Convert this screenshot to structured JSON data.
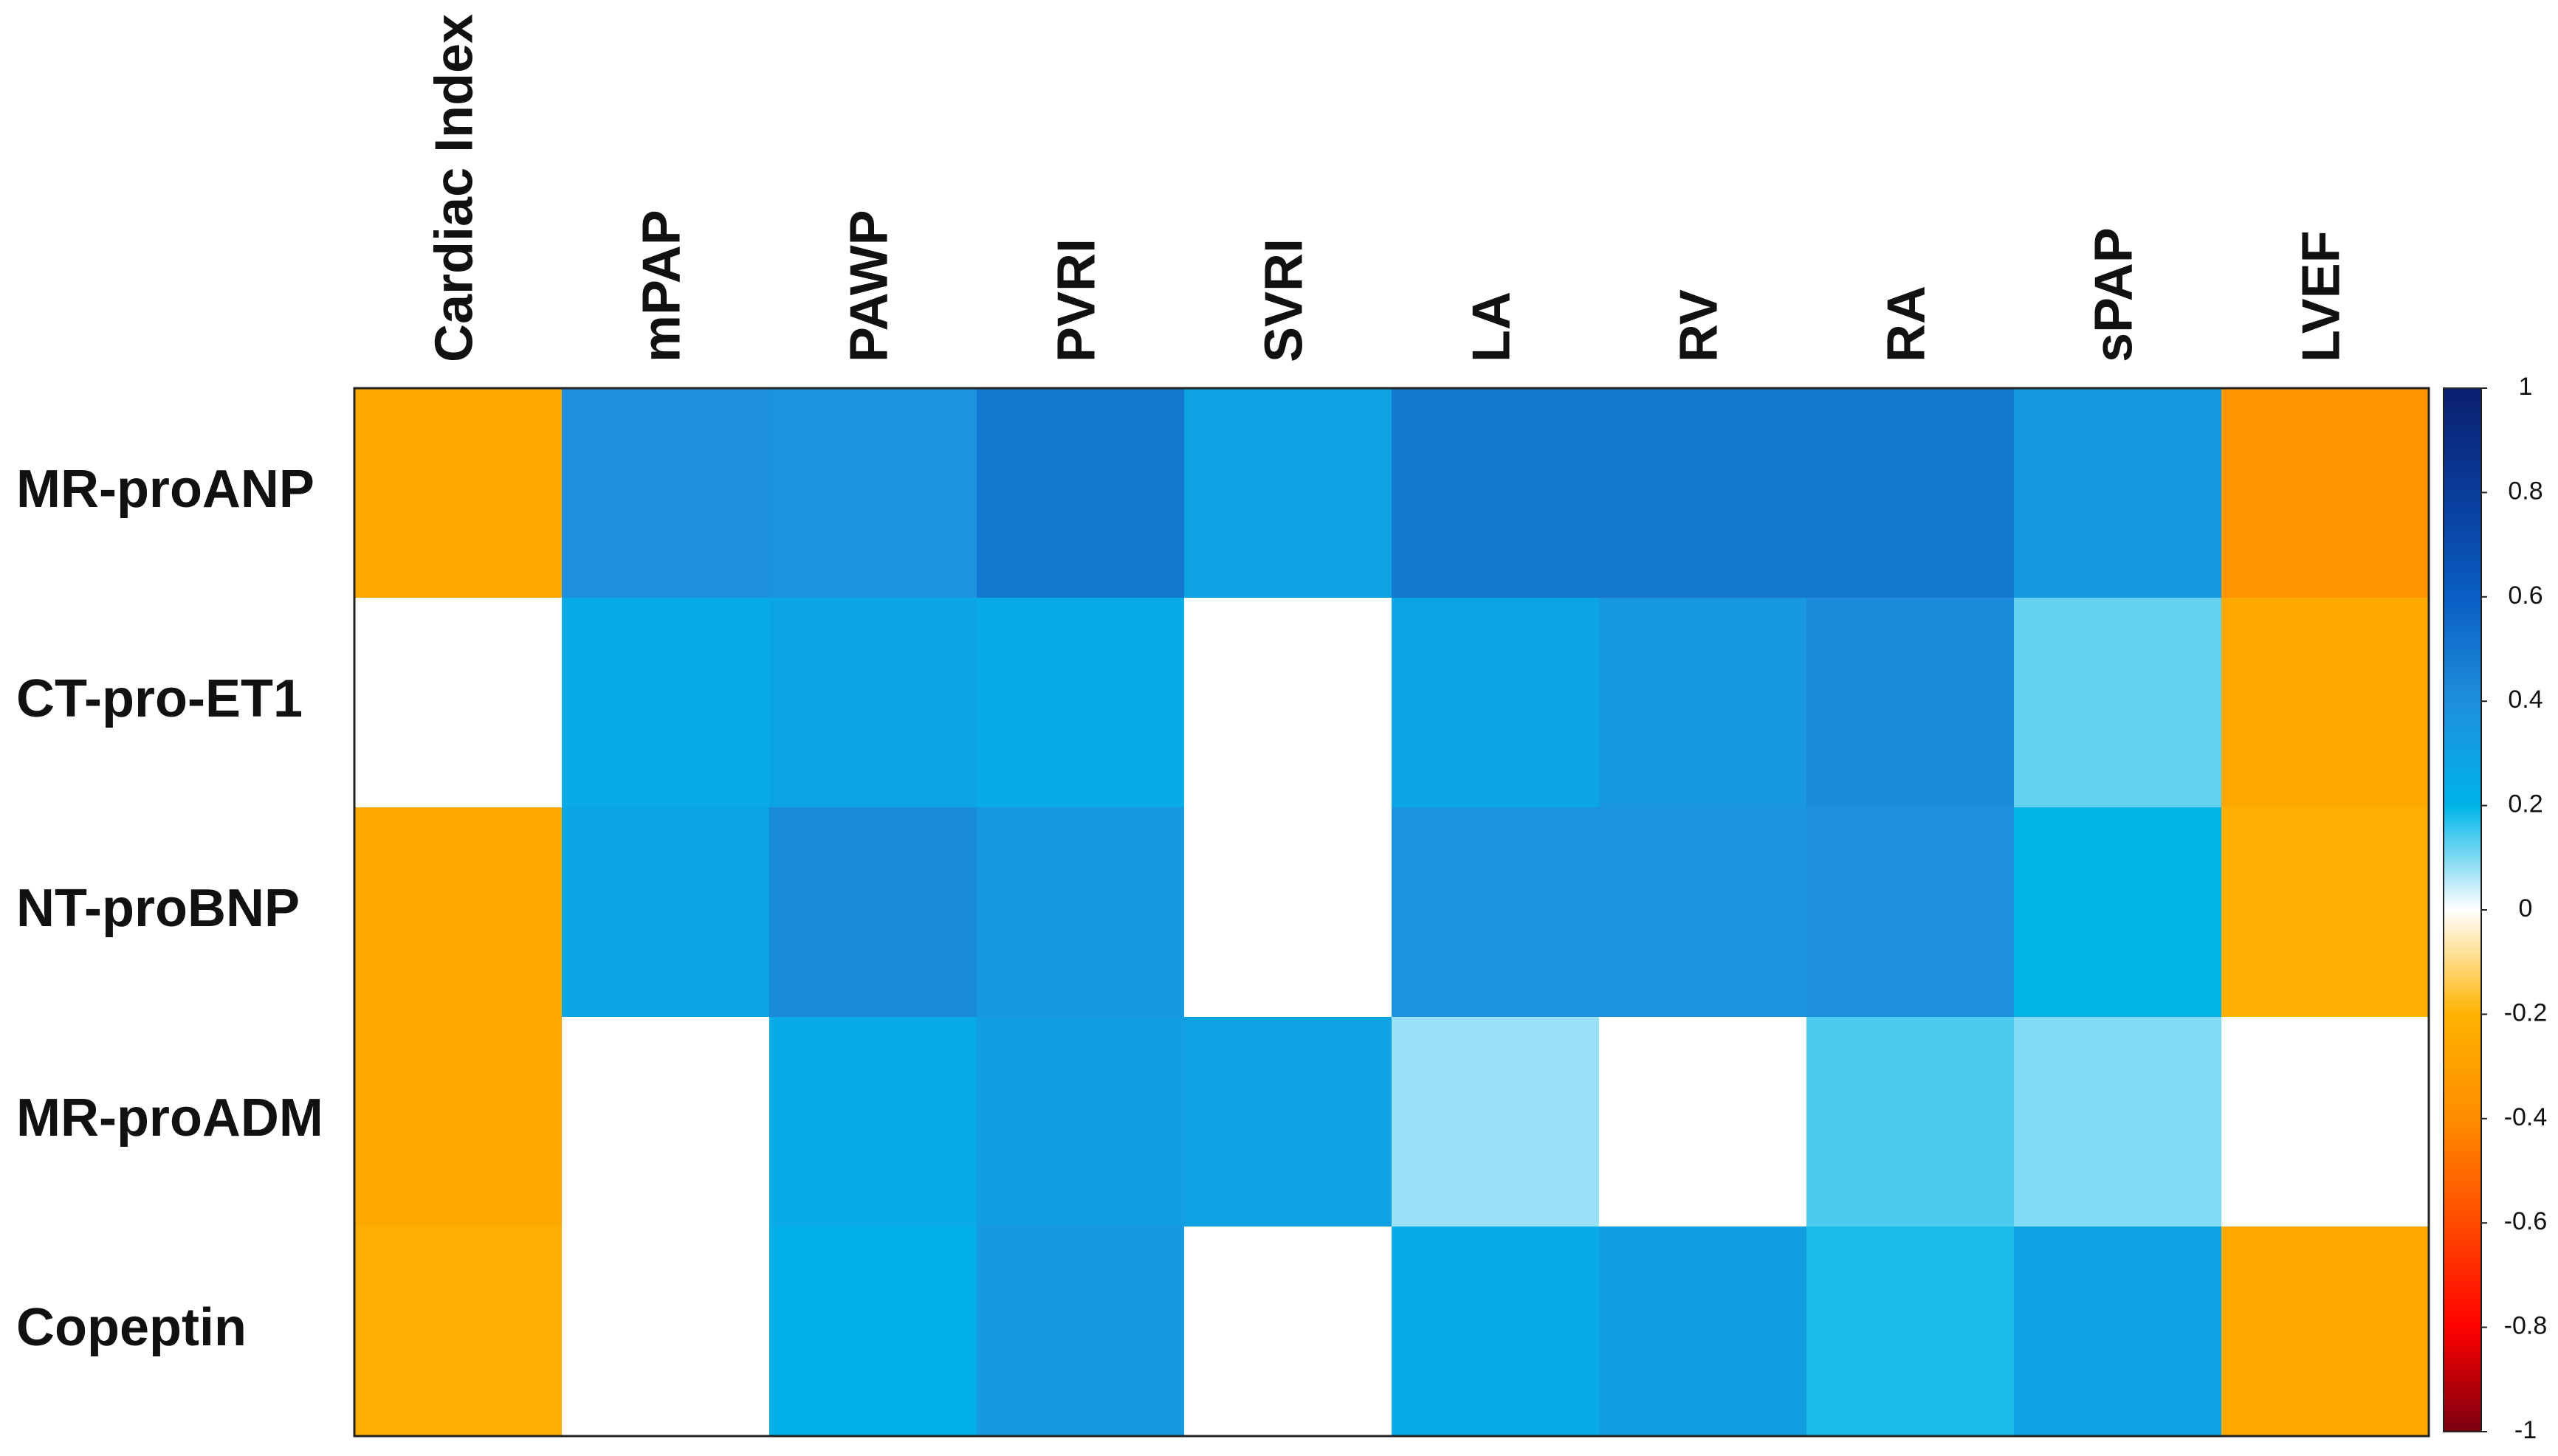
{
  "chart_data": {
    "type": "heatmap",
    "x_categories": [
      "Cardiac Index",
      "mPAP",
      "PAWP",
      "PVRI",
      "SVRI",
      "LA",
      "RV",
      "RA",
      "sPAP",
      "LVEF"
    ],
    "y_categories": [
      "MR-proANP",
      "CT-pro-ET1",
      "NT-proBNP",
      "MR-proADM",
      "Copeptin"
    ],
    "values": [
      [
        -0.25,
        0.4,
        0.38,
        0.5,
        0.3,
        0.5,
        0.5,
        0.5,
        0.35,
        -0.35
      ],
      [
        0,
        0.25,
        0.28,
        0.25,
        0,
        0.28,
        0.35,
        0.42,
        0.12,
        -0.25
      ],
      [
        -0.25,
        0.28,
        0.42,
        0.35,
        0,
        0.38,
        0.38,
        0.4,
        0.2,
        -0.22
      ],
      [
        -0.25,
        0,
        0.25,
        0.32,
        0.3,
        0.08,
        0,
        0.14,
        0.1,
        0
      ],
      [
        -0.22,
        0,
        0.22,
        0.35,
        0,
        0.25,
        0.32,
        0.18,
        0.3,
        -0.25
      ]
    ],
    "colors": [
      "#7a0010",
      "#ff0000",
      "#ff4a00",
      "#ff8c00",
      "#ffb300",
      "#ffffff",
      "#00b4e8",
      "#1e8fdc",
      "#0a5ec4",
      "#0a3c9a",
      "#0a1f6e"
    ],
    "clim": [
      -1,
      1
    ],
    "cticks": [
      1,
      0.8,
      0.6,
      0.4,
      0.2,
      0,
      -0.2,
      -0.4,
      -0.6,
      -0.8,
      -1
    ]
  }
}
